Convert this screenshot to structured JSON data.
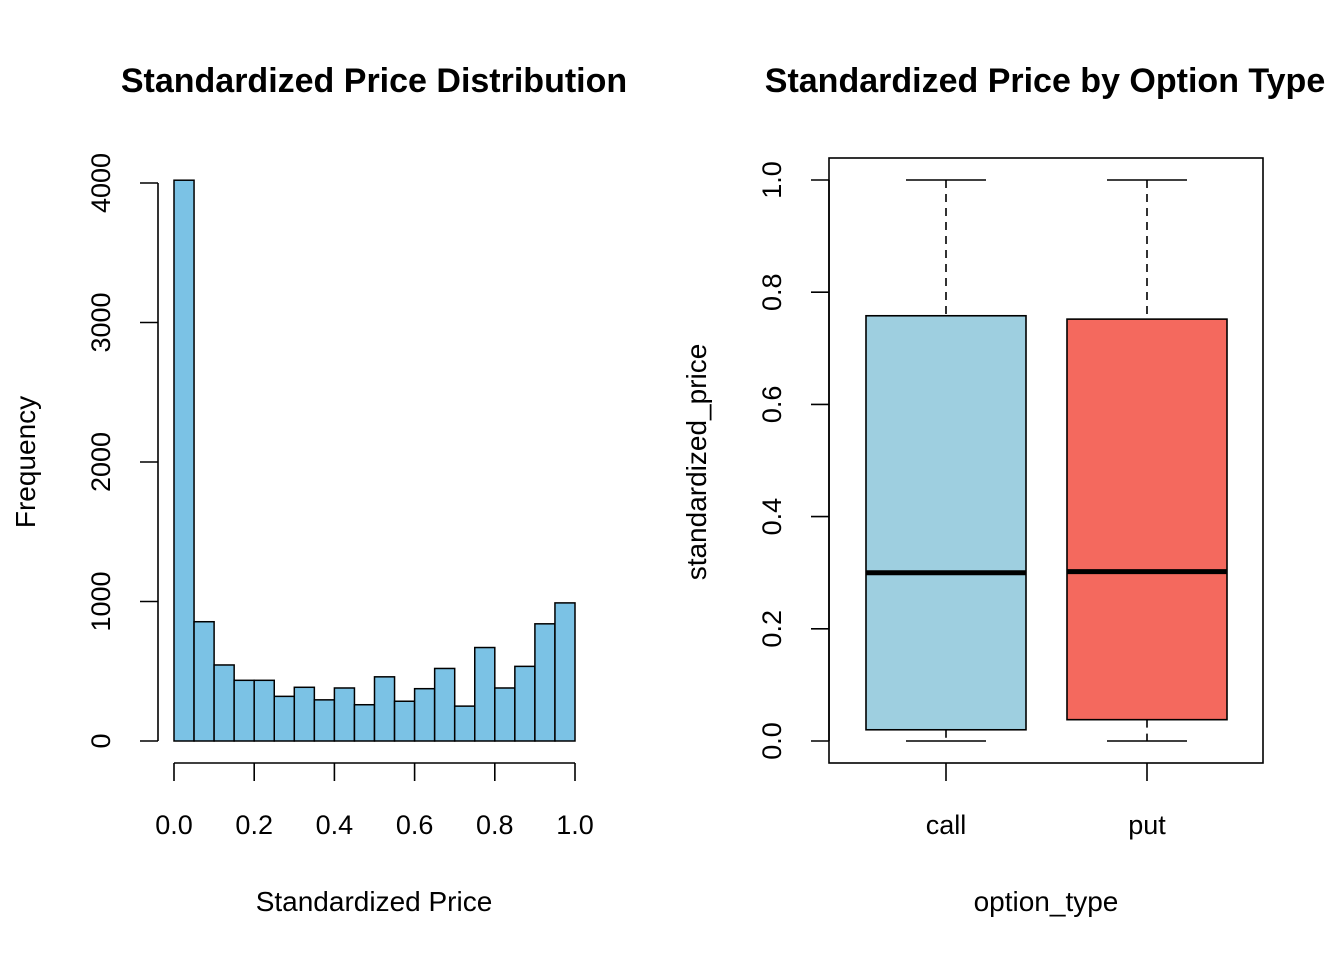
{
  "chart_data": [
    {
      "type": "bar",
      "subtype": "histogram",
      "title": "Standardized Price Distribution",
      "xlabel": "Standardized Price",
      "ylabel": "Frequency",
      "bin_edges": [
        0.0,
        0.05,
        0.1,
        0.15,
        0.2,
        0.25,
        0.3,
        0.35,
        0.4,
        0.45,
        0.5,
        0.55,
        0.6,
        0.65,
        0.7,
        0.75,
        0.8,
        0.85,
        0.9,
        0.95,
        1.0
      ],
      "values": [
        4020,
        855,
        545,
        435,
        435,
        320,
        385,
        295,
        380,
        260,
        460,
        285,
        375,
        520,
        250,
        670,
        380,
        535,
        840,
        990
      ],
      "xlim": [
        0,
        1
      ],
      "ylim": [
        0,
        4000
      ],
      "x_ticks": [
        "0.0",
        "0.2",
        "0.4",
        "0.6",
        "0.8",
        "1.0"
      ],
      "x_tick_values": [
        0,
        0.2,
        0.4,
        0.6,
        0.8,
        1.0
      ],
      "y_ticks": [
        "0",
        "1000",
        "2000",
        "3000",
        "4000"
      ],
      "y_tick_values": [
        0,
        1000,
        2000,
        3000,
        4000
      ],
      "bar_color": "#7bc2e5"
    },
    {
      "type": "box",
      "title": "Standardized Price by Option Type",
      "xlabel": "option_type",
      "ylabel": "standardized_price",
      "categories": [
        "call",
        "put"
      ],
      "boxes": [
        {
          "category": "call",
          "min": 0.0,
          "q1": 0.02,
          "median": 0.3,
          "q3": 0.758,
          "max": 1.0,
          "color": "#9ecfe0"
        },
        {
          "category": "put",
          "min": 0.0,
          "q1": 0.038,
          "median": 0.302,
          "q3": 0.752,
          "max": 1.0,
          "color": "#f4695e"
        }
      ],
      "ylim": [
        0,
        1
      ],
      "y_ticks": [
        "0.0",
        "0.2",
        "0.4",
        "0.6",
        "0.8",
        "1.0"
      ],
      "y_tick_values": [
        0,
        0.2,
        0.4,
        0.6,
        0.8,
        1.0
      ]
    }
  ]
}
